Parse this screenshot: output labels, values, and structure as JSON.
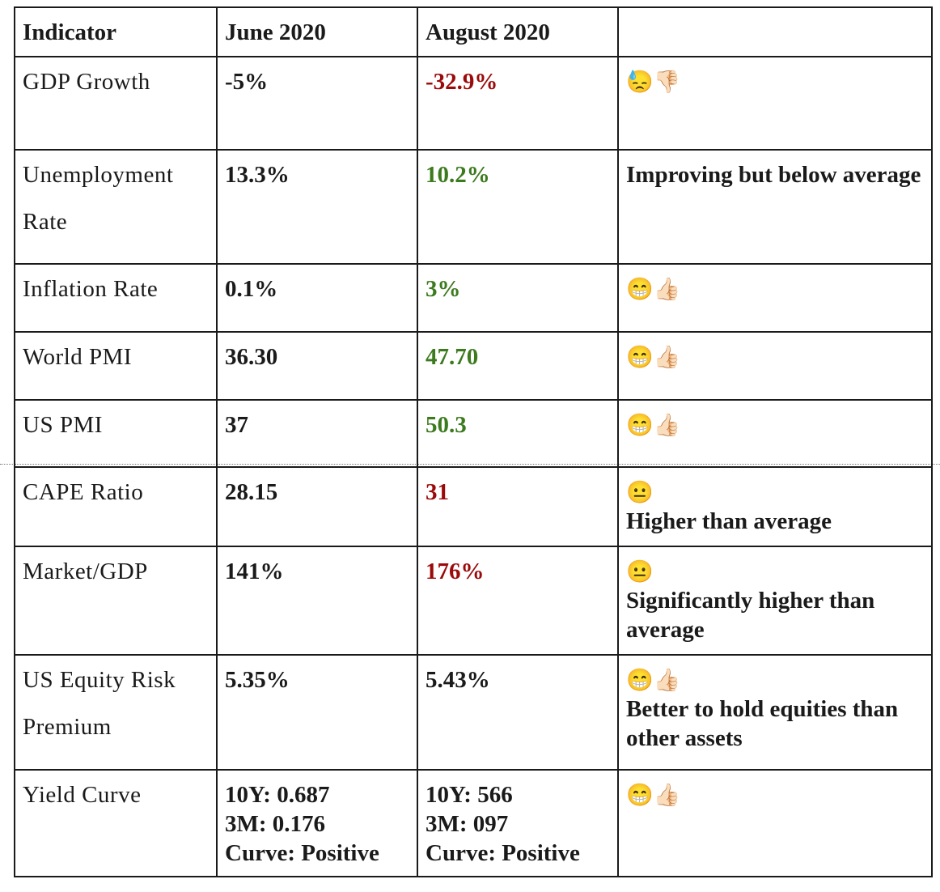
{
  "table": {
    "headers": [
      "Indicator",
      "June 2020",
      "August 2020",
      ""
    ],
    "rows": [
      {
        "indicator": [
          "GDP Growth"
        ],
        "june": "-5%",
        "august": "-32.9%",
        "august_color": "red",
        "emoji": "😓👎🏻",
        "note": ""
      },
      {
        "indicator": [
          "Unemployment",
          "Rate"
        ],
        "june": "13.3%",
        "august": "10.2%",
        "august_color": "green",
        "emoji": "",
        "note": "Improving but below average"
      },
      {
        "indicator": [
          "Inflation Rate"
        ],
        "june": "0.1%",
        "august": "3%",
        "august_color": "green",
        "emoji": "😁👍🏻",
        "note": ""
      },
      {
        "indicator": [
          "World PMI"
        ],
        "june": "36.30",
        "august": "47.70",
        "august_color": "green",
        "emoji": "😁👍🏻",
        "note": ""
      },
      {
        "indicator": [
          "US PMI"
        ],
        "june": "37",
        "august": "50.3",
        "august_color": "green",
        "emoji": "😁👍🏻",
        "note": ""
      },
      {
        "indicator": [
          "CAPE Ratio"
        ],
        "june": "28.15",
        "august": "31",
        "august_color": "red",
        "emoji": "😐",
        "note": "Higher than average"
      },
      {
        "indicator": [
          "Market/GDP"
        ],
        "june": "141%",
        "august": "176%",
        "august_color": "red",
        "emoji": "😐",
        "note": "Significantly higher than average"
      },
      {
        "indicator": [
          "US Equity Risk",
          "Premium"
        ],
        "june": "5.35%",
        "august": "5.43%",
        "august_color": "",
        "emoji": "😁👍🏻",
        "note": "Better to hold equities than other assets"
      },
      {
        "indicator": [
          "Yield Curve"
        ],
        "june_lines": [
          "10Y: 0.687",
          "3M: 0.176",
          "Curve: Positive"
        ],
        "august_lines": [
          "10Y: 566",
          "3M: 097",
          "Curve: Positive"
        ],
        "emoji": "😁👍🏻",
        "note": ""
      }
    ]
  },
  "colors": {
    "negative": "#9b0a0a",
    "positive": "#3c7a1e",
    "border": "#1a1a1a"
  }
}
